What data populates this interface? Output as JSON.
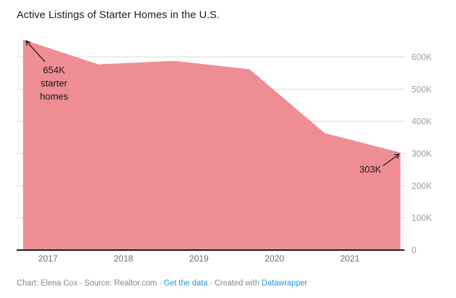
{
  "header": {
    "title": "Active Listings of Starter Homes in the U.S."
  },
  "chart_data": {
    "type": "area",
    "title": "Active Listings of Starter Homes in the U.S.",
    "x": [
      2016.67,
      2017.67,
      2018.67,
      2019.67,
      2020.67,
      2021.67
    ],
    "series": [
      {
        "name": "Active listings of starter homes",
        "values_thousands": [
          654,
          577,
          588,
          562,
          363,
          303
        ]
      }
    ],
    "xlabel": "",
    "ylabel": "",
    "xlim": [
      2016.59,
      2021.73
    ],
    "ylim_thousands": [
      0,
      700
    ],
    "grid": "horizontal",
    "legend": "none",
    "x_ticks": [
      {
        "pos": 2017,
        "label": "2017"
      },
      {
        "pos": 2018,
        "label": "2018"
      },
      {
        "pos": 2019,
        "label": "2019"
      },
      {
        "pos": 2020,
        "label": "2020"
      },
      {
        "pos": 2021,
        "label": "2021"
      }
    ],
    "y_ticks": [
      {
        "pos": 600,
        "label": "600K"
      },
      {
        "pos": 500,
        "label": "500K"
      },
      {
        "pos": 400,
        "label": "400K"
      },
      {
        "pos": 300,
        "label": "300K"
      },
      {
        "pos": 200,
        "label": "200K"
      },
      {
        "pos": 100,
        "label": "100K"
      },
      {
        "pos": 0,
        "label": "0"
      }
    ],
    "annotations": [
      {
        "lines": [
          "654K",
          "starter",
          "homes"
        ],
        "text_x": 2017.08,
        "text_top_value": 577,
        "arrow": {
          "from_x": 2016.96,
          "from_value": 585,
          "to_x": 2016.71,
          "to_value": 650
        }
      },
      {
        "lines": [
          "303K"
        ],
        "text_x": 2021.27,
        "text_top_value": 269,
        "arrow": {
          "from_x": 2021.44,
          "from_value": 262,
          "to_x": 2021.65,
          "to_value": 298
        }
      }
    ],
    "colors": {
      "area": "#ef8d95",
      "grid": "#d9d9d9",
      "baseline": "#161616",
      "y_tick_label": "#9e9e9e",
      "x_tick_label": "#6e6e6e",
      "annotation": "#1a1a1a"
    }
  },
  "footer": {
    "credit": "Chart: Elena Cox",
    "separator": "·",
    "source": "Source: Realtor.com",
    "get_data_label": "Get the data",
    "created_with": "Created with",
    "brand": "Datawrapper",
    "link_color": "#1e9cd6",
    "text_color": "#878787"
  }
}
